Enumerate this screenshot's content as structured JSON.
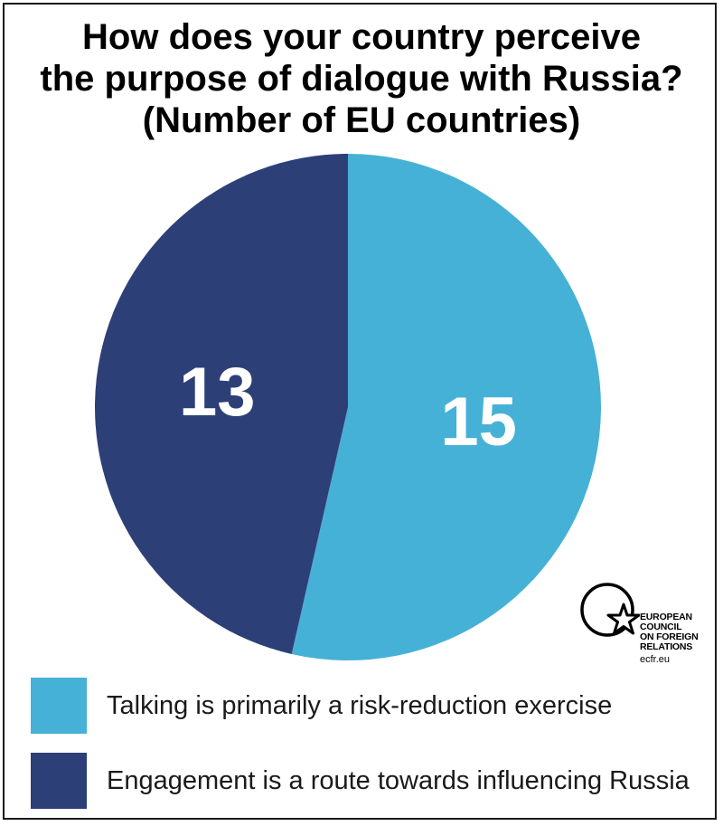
{
  "title_lines": [
    "How does your country perceive",
    "the purpose of dialogue with Russia?",
    "(Number of EU countries)"
  ],
  "colors": {
    "risk_reduction": "#46b1d6",
    "influencing": "#2d3f77"
  },
  "chart_data": {
    "type": "pie",
    "title": "How does your country perceive the purpose of dialogue with Russia? (Number of EU countries)",
    "slices": [
      {
        "label": "Talking is primarily a risk-reduction exercise",
        "value": 15,
        "color": "#46b1d6"
      },
      {
        "label": "Engagement is a route towards influencing Russia",
        "value": 13,
        "color": "#2d3f77"
      }
    ],
    "legend_position": "bottom"
  },
  "legend": [
    {
      "label": "Talking is primarily a risk-reduction exercise",
      "color": "#46b1d6"
    },
    {
      "label": "Engagement is a route towards influencing Russia",
      "color": "#2d3f77"
    }
  ],
  "logo": {
    "lines": [
      "EUROPEAN",
      "COUNCIL",
      "ON FOREIGN",
      "RELATIONS"
    ],
    "url": "ecfr.eu",
    "icon": "star-in-circle-icon"
  }
}
